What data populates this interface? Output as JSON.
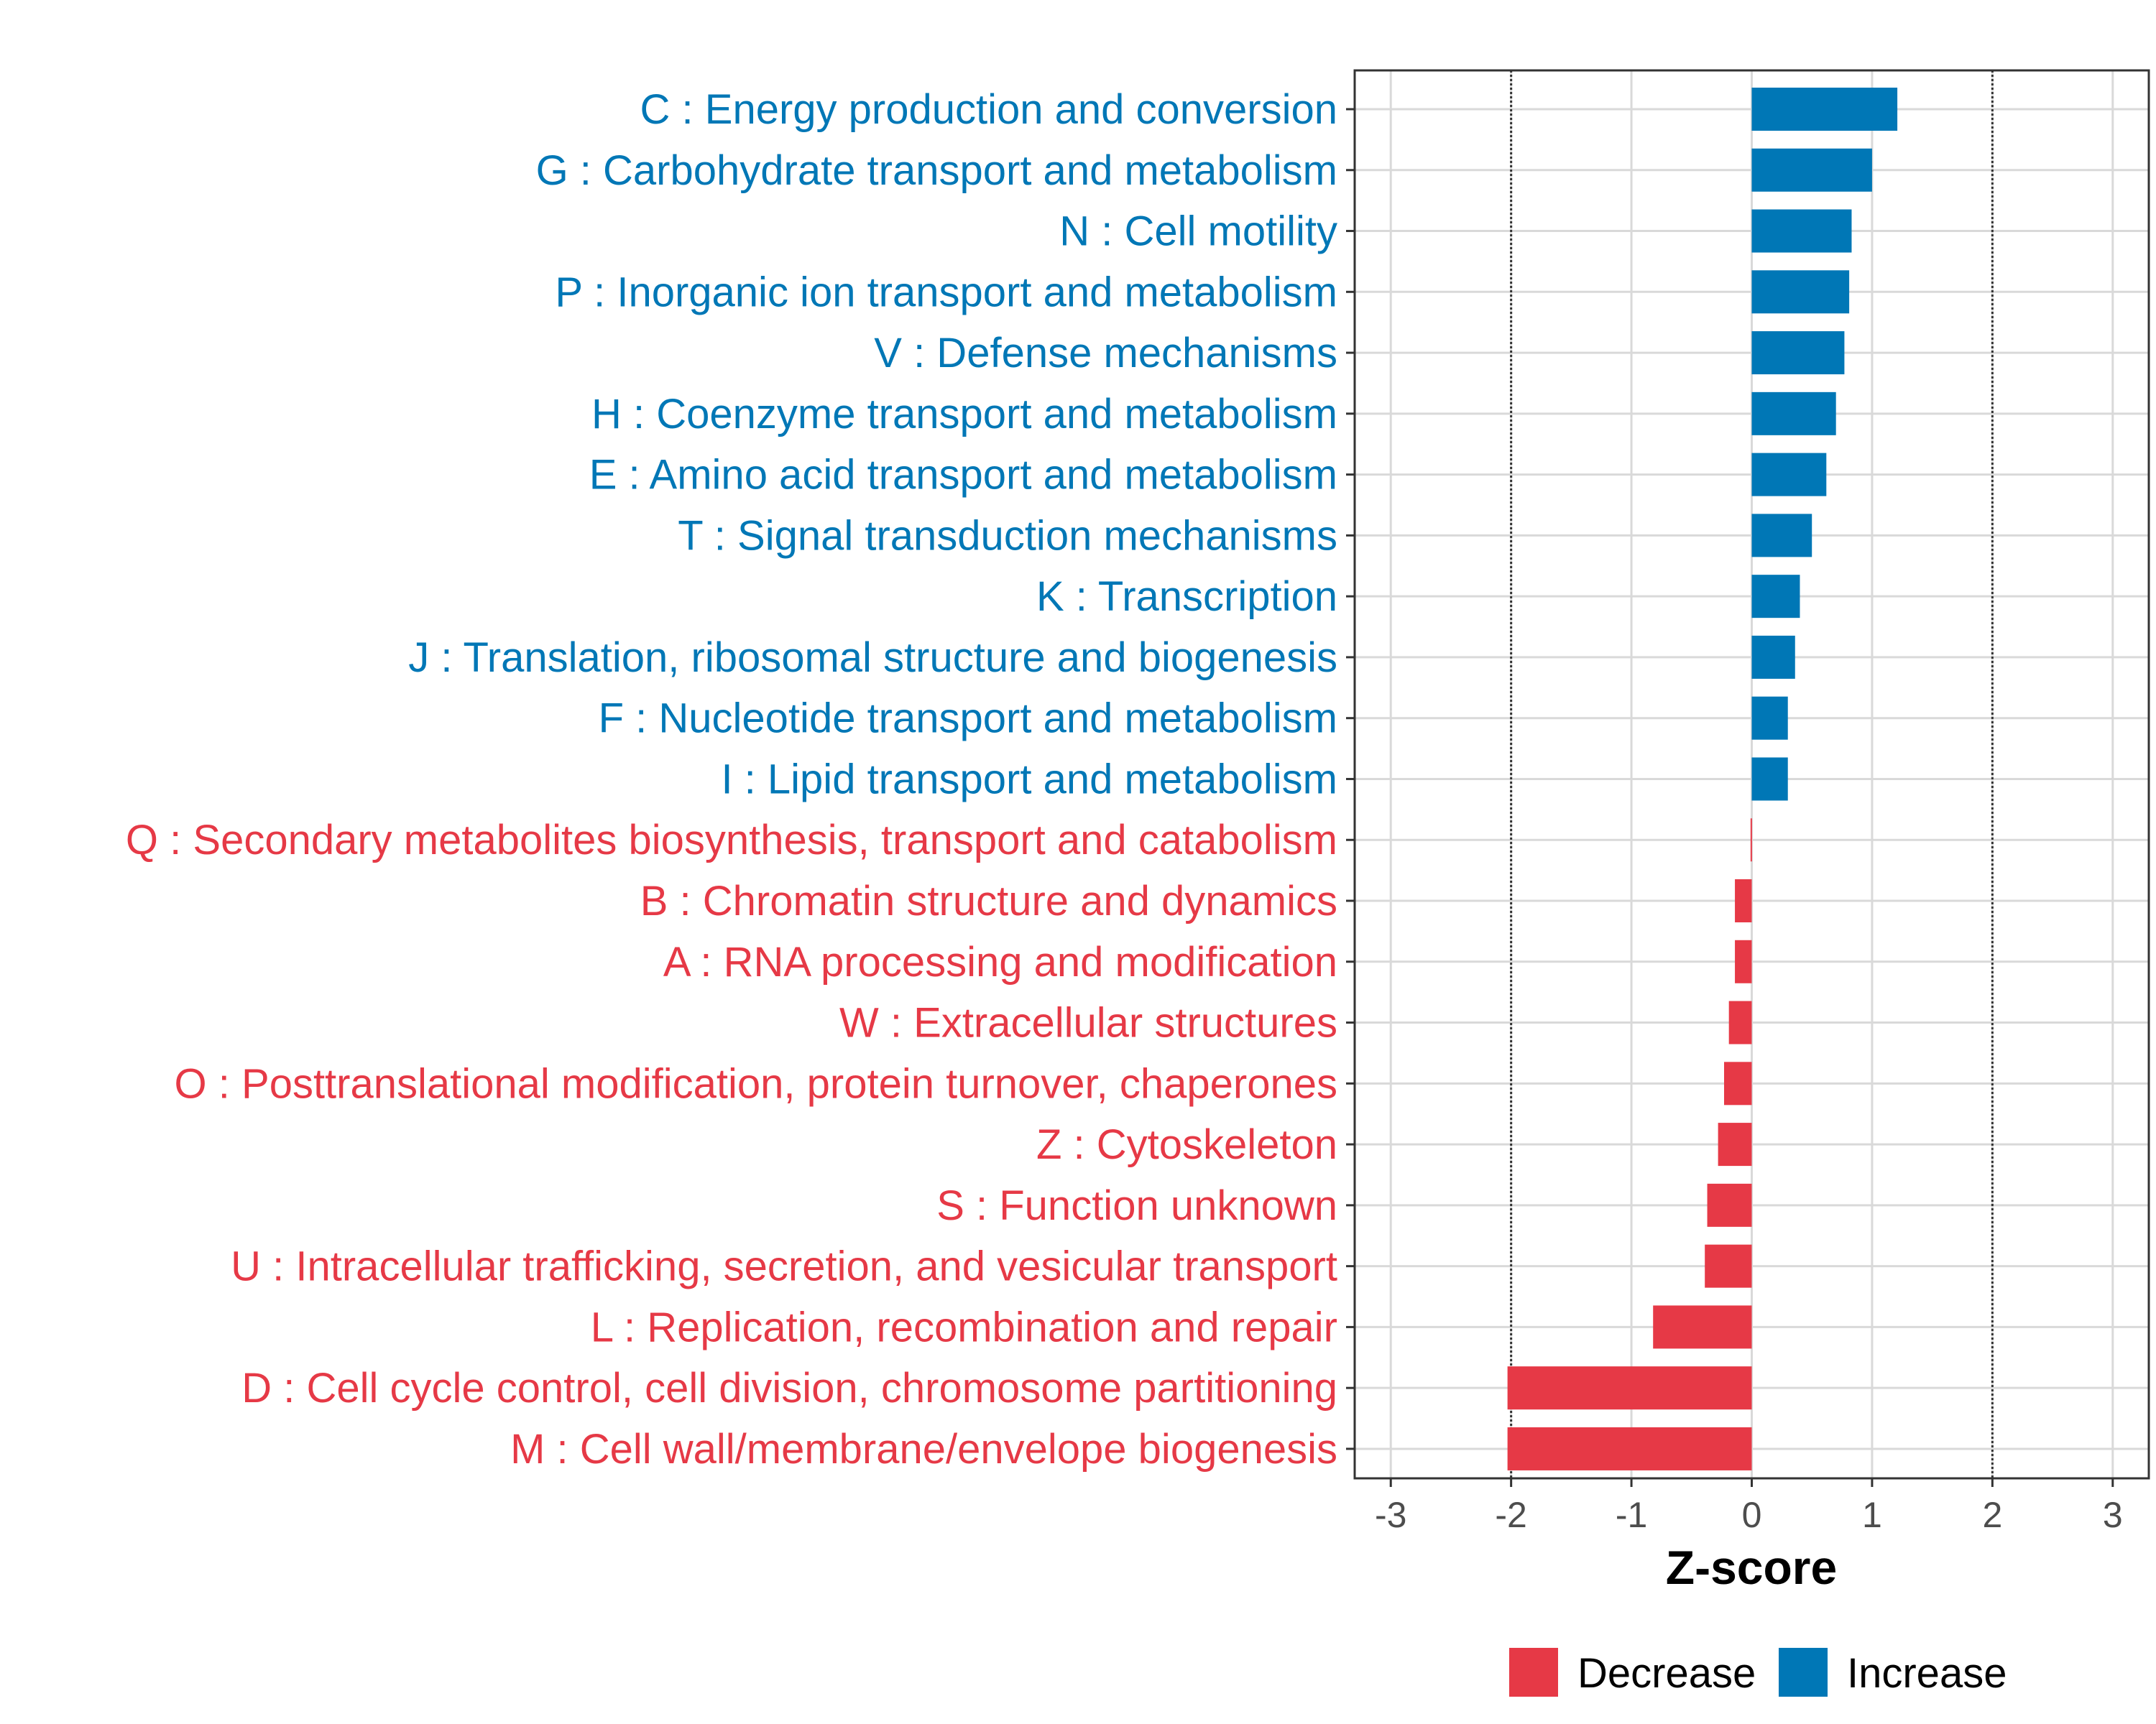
{
  "chart_data": {
    "type": "bar",
    "orientation": "horizontal",
    "xlabel": "Z-score",
    "ylabel": "",
    "xlim": [
      -3.3,
      3.3
    ],
    "x_ticks": [
      -3,
      -2,
      -1,
      0,
      1,
      2,
      3
    ],
    "x_tick_labels": [
      "-3",
      "-2",
      "-1",
      "0",
      "1",
      "2",
      "3"
    ],
    "reference_lines": [
      -2,
      2
    ],
    "grid": true,
    "legend_position": "bottom",
    "colors": {
      "Decrease": "#e63946",
      "Increase": "#0077b6"
    },
    "categories": [
      "C : Energy production and conversion",
      "G : Carbohydrate transport and metabolism",
      "N : Cell motility",
      "P : Inorganic ion transport and metabolism",
      "V : Defense mechanisms",
      "H : Coenzyme transport and metabolism",
      "E : Amino acid transport and metabolism",
      "T : Signal transduction mechanisms",
      "K : Transcription",
      "J : Translation, ribosomal structure and biogenesis",
      "F : Nucleotide transport and metabolism",
      "I : Lipid transport and metabolism",
      "Q : Secondary metabolites biosynthesis, transport and catabolism",
      "B : Chromatin structure and dynamics",
      "A : RNA processing and modification",
      "W : Extracellular structures",
      "O : Posttranslational modification, protein turnover, chaperones",
      "Z : Cytoskeleton",
      "S : Function unknown",
      "U : Intracellular trafficking, secretion, and vesicular transport",
      "L : Replication, recombination and repair",
      "D : Cell cycle control, cell division, chromosome partitioning",
      "M : Cell wall/membrane/envelope biogenesis"
    ],
    "values": [
      1.21,
      1.0,
      0.83,
      0.81,
      0.77,
      0.7,
      0.62,
      0.5,
      0.4,
      0.36,
      0.3,
      0.3,
      -0.01,
      -0.14,
      -0.14,
      -0.19,
      -0.23,
      -0.28,
      -0.37,
      -0.39,
      -0.82,
      -2.03,
      -2.03
    ],
    "groups": [
      "Increase",
      "Increase",
      "Increase",
      "Increase",
      "Increase",
      "Increase",
      "Increase",
      "Increase",
      "Increase",
      "Increase",
      "Increase",
      "Increase",
      "Decrease",
      "Decrease",
      "Decrease",
      "Decrease",
      "Decrease",
      "Decrease",
      "Decrease",
      "Decrease",
      "Decrease",
      "Decrease",
      "Decrease"
    ],
    "legend": [
      "Decrease",
      "Increase"
    ]
  }
}
